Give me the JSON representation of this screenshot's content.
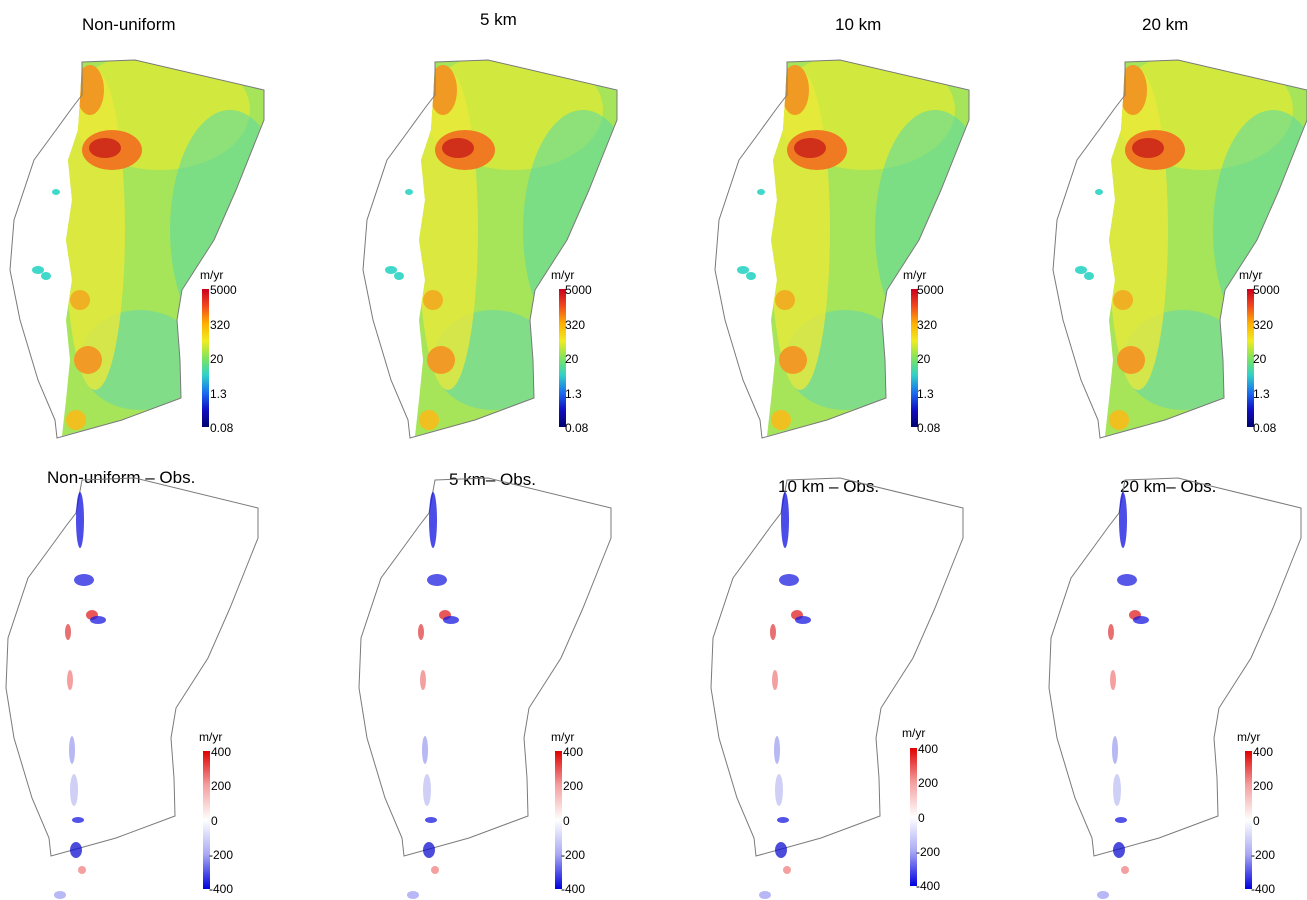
{
  "velocity_panels": [
    {
      "title": "Non-uniform"
    },
    {
      "title": "5 km"
    },
    {
      "title": "10 km"
    },
    {
      "title": "20 km"
    }
  ],
  "difference_panels": [
    {
      "title": "Non-uniform – Obs."
    },
    {
      "title": "5 km– Obs."
    },
    {
      "title": "10 km – Obs."
    },
    {
      "title": "20 km– Obs."
    }
  ],
  "velocity_colorbar": {
    "unit": "m/yr",
    "scale": "log",
    "ticks": [
      "5000",
      "320",
      "20",
      "1.3",
      "0.08"
    ],
    "colors": [
      "#c8001e",
      "#f04a1e",
      "#ffb000",
      "#f0ec20",
      "#80e460",
      "#30d0c8",
      "#1a70f0",
      "#1010c0",
      "#000070"
    ]
  },
  "difference_colorbar": {
    "unit": "m/yr",
    "ticks": [
      "400",
      "200",
      "0",
      "-200",
      "-400"
    ],
    "colors": [
      "#e00000",
      "#f4a0a0",
      "#ffffff",
      "#a8a8f4",
      "#0000e0"
    ]
  }
}
